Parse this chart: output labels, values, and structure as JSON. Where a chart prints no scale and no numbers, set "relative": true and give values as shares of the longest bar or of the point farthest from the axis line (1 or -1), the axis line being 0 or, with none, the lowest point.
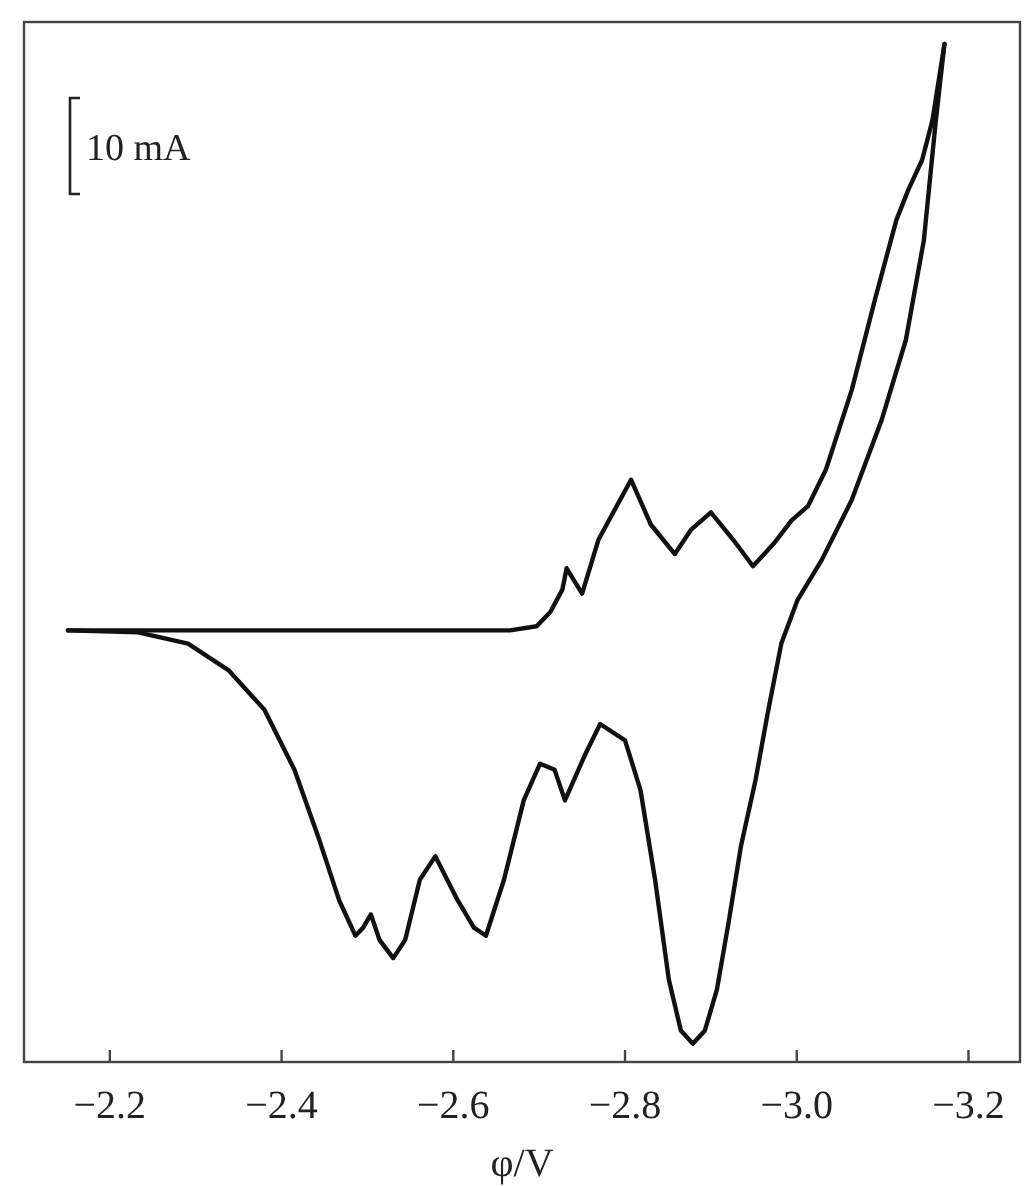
{
  "chart_data": {
    "type": "line",
    "xlabel": "φ/V",
    "relative": true,
    "xlim": [
      -2.1,
      -3.26
    ],
    "xticks": [
      {
        "value": -2.2,
        "label": "−2.2"
      },
      {
        "value": -2.4,
        "label": "−2.4"
      },
      {
        "value": -2.6,
        "label": "−2.6"
      },
      {
        "value": -2.8,
        "label": "−2.8"
      },
      {
        "value": -3.0,
        "label": "−3.0"
      },
      {
        "value": -3.2,
        "label": "−3.2"
      }
    ],
    "annotations": [
      "10 mA"
    ],
    "grid": false,
    "marker": "none",
    "line_style": "solid",
    "series": [
      {
        "color": "#111111",
        "x": [
          -2.151,
          -2.42,
          -2.666,
          -2.697,
          -2.713,
          -2.727,
          -2.732,
          -2.75,
          -2.769,
          -2.807,
          -2.83,
          -2.858,
          -2.877,
          -2.9,
          -2.926,
          -2.949,
          -2.973,
          -2.994,
          -3.013,
          -3.034,
          -3.064,
          -3.092,
          -3.116,
          -3.13,
          -3.146,
          -3.158,
          -3.172
        ],
        "values": [
          0.424,
          0.424,
          0.424,
          0.428,
          0.442,
          0.464,
          0.485,
          0.46,
          0.513,
          0.572,
          0.528,
          0.499,
          0.523,
          0.54,
          0.513,
          0.487,
          0.509,
          0.532,
          0.546,
          0.582,
          0.66,
          0.752,
          0.827,
          0.857,
          0.886,
          0.925,
          1
        ]
      },
      {
        "color": "#111111",
        "x": [
          -3.172,
          -3.162,
          -3.148,
          -3.127,
          -3.099,
          -3.064,
          -3.029,
          -3.001,
          -2.982,
          -2.966,
          -2.952,
          -2.935,
          -2.921,
          -2.907,
          -2.893,
          -2.879,
          -2.865,
          -2.851,
          -2.835,
          -2.818,
          -2.8,
          -2.771,
          -2.753,
          -2.73,
          -2.718,
          -2.701,
          -2.682,
          -2.659,
          -2.638,
          -2.624,
          -2.605,
          -2.579,
          -2.561,
          -2.544,
          -2.53,
          -2.514,
          -2.504,
          -2.495,
          -2.486,
          -2.467,
          -2.444,
          -2.415,
          -2.38,
          -2.338,
          -2.291,
          -2.233,
          -2.151
        ],
        "values": [
          1,
          0.925,
          0.807,
          0.709,
          0.631,
          0.552,
          0.493,
          0.454,
          0.411,
          0.342,
          0.277,
          0.212,
          0.139,
          0.071,
          0.031,
          0.018,
          0.031,
          0.081,
          0.179,
          0.267,
          0.316,
          0.332,
          0.301,
          0.257,
          0.287,
          0.293,
          0.257,
          0.179,
          0.124,
          0.132,
          0.159,
          0.202,
          0.179,
          0.12,
          0.102,
          0.12,
          0.145,
          0.132,
          0.124,
          0.159,
          0.218,
          0.287,
          0.346,
          0.385,
          0.411,
          0.422,
          0.424
        ]
      }
    ]
  }
}
